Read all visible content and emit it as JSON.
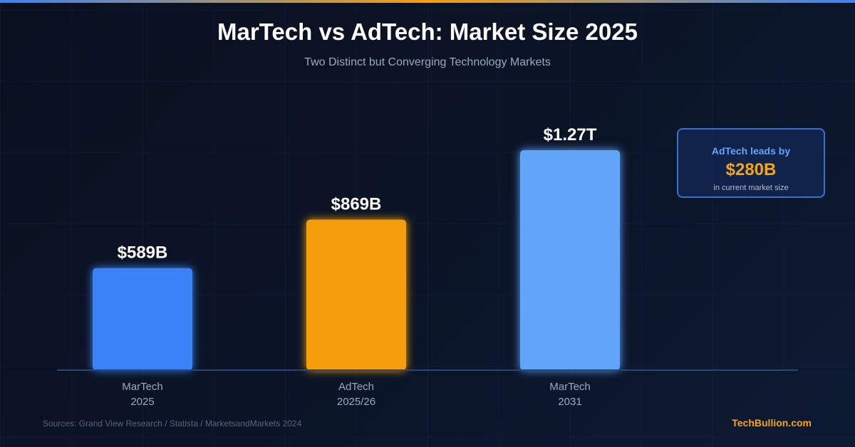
{
  "header": {
    "title": "MarTech vs AdTech: Market Size 2025",
    "subtitle": "Two Distinct but Converging Technology Markets"
  },
  "chart_data": {
    "type": "bar",
    "title": "MarTech vs AdTech: Market Size 2025",
    "subtitle": "Two Distinct but Converging Technology Markets",
    "categories": [
      [
        "MarTech",
        "2025"
      ],
      [
        "AdTech",
        "2025/26"
      ],
      [
        "MarTech",
        "2031"
      ]
    ],
    "values": [
      589,
      869,
      1270
    ],
    "unit": "USD billions",
    "data_labels": [
      "$589B",
      "$869B",
      "$1.27T"
    ],
    "colors": [
      "#3b82f6",
      "#f59e0b",
      "#60a5fa"
    ],
    "xlabel": "",
    "ylabel": "",
    "ylim": [
      0,
      1270
    ],
    "grid": false,
    "legend": "none"
  },
  "callout": {
    "lead": "AdTech leads by",
    "amount": "$280B",
    "note": "in current market size",
    "colors": {
      "lead": "#60a5fa",
      "amount": "#f5a417",
      "border": "#3b6fd0"
    }
  },
  "footer": {
    "source": "Sources: Grand View Research / Statista / MarketsandMarkets 2024",
    "brand": "TechBullion.com",
    "brand_color": "#f5a417"
  }
}
